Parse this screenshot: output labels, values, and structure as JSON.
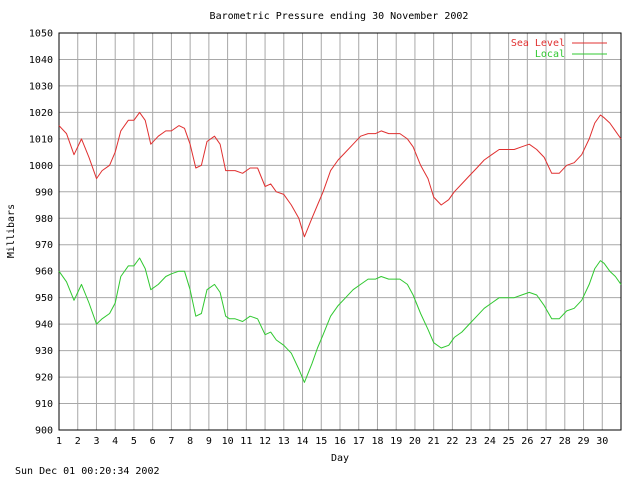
{
  "footer": {
    "timestamp": "Sun Dec 01 00:20:34 2002"
  },
  "chart_data": {
    "type": "line",
    "title": "Barometric Pressure ending 30 November 2002",
    "xlabel": "Day",
    "ylabel": "Millibars",
    "xlim": [
      1,
      31
    ],
    "ylim": [
      900,
      1050
    ],
    "x_ticks": [
      "1",
      "2",
      "3",
      "4",
      "5",
      "6",
      "7",
      "8",
      "9",
      "10",
      "11",
      "12",
      "13",
      "14",
      "15",
      "16",
      "17",
      "18",
      "19",
      "20",
      "21",
      "22",
      "23",
      "24",
      "25",
      "26",
      "27",
      "28",
      "29",
      "30"
    ],
    "y_ticks": [
      900,
      910,
      920,
      930,
      940,
      950,
      960,
      970,
      980,
      990,
      1000,
      1010,
      1020,
      1030,
      1040,
      1050
    ],
    "grid": true,
    "legend": "top-right",
    "series": [
      {
        "name": "Sea Level",
        "color": "#e03030",
        "x": [
          1.0,
          1.4,
          1.8,
          2.2,
          2.6,
          3.0,
          3.3,
          3.7,
          4.0,
          4.3,
          4.7,
          5.0,
          5.3,
          5.6,
          5.9,
          6.3,
          6.7,
          7.0,
          7.4,
          7.7,
          8.0,
          8.3,
          8.6,
          8.9,
          9.3,
          9.6,
          9.9,
          10.1,
          10.4,
          10.8,
          11.2,
          11.6,
          12.0,
          12.3,
          12.6,
          13.0,
          13.4,
          13.8,
          14.1,
          14.5,
          14.8,
          15.1,
          15.5,
          15.9,
          16.3,
          16.7,
          17.1,
          17.5,
          17.9,
          18.2,
          18.6,
          18.9,
          19.2,
          19.6,
          19.9,
          20.3,
          20.7,
          21.0,
          21.4,
          21.8,
          22.1,
          22.5,
          22.9,
          23.3,
          23.7,
          24.1,
          24.5,
          24.9,
          25.3,
          25.7,
          26.1,
          26.5,
          26.9,
          27.3,
          27.7,
          28.1,
          28.5,
          28.9,
          29.3,
          29.6,
          29.9,
          30.1,
          30.4,
          30.7,
          31.0
        ],
        "values": [
          1015,
          1012,
          1004,
          1010,
          1003,
          995,
          998,
          1000,
          1005,
          1013,
          1017,
          1017,
          1020,
          1017,
          1008,
          1011,
          1013,
          1013,
          1015,
          1014,
          1008,
          999,
          1000,
          1009,
          1011,
          1008,
          998,
          998,
          998,
          997,
          999,
          999,
          992,
          993,
          990,
          989,
          985,
          980,
          973,
          980,
          985,
          990,
          998,
          1002,
          1005,
          1008,
          1011,
          1012,
          1012,
          1013,
          1012,
          1012,
          1012,
          1010,
          1007,
          1000,
          995,
          988,
          985,
          987,
          990,
          993,
          996,
          999,
          1002,
          1004,
          1006,
          1006,
          1006,
          1007,
          1008,
          1006,
          1003,
          997,
          997,
          1000,
          1001,
          1004,
          1010,
          1016,
          1019,
          1018,
          1016,
          1013,
          1010
        ]
      },
      {
        "name": "Local",
        "color": "#30c830",
        "x": [
          1.0,
          1.4,
          1.8,
          2.2,
          2.6,
          3.0,
          3.3,
          3.7,
          4.0,
          4.3,
          4.7,
          5.0,
          5.3,
          5.6,
          5.9,
          6.3,
          6.7,
          7.0,
          7.4,
          7.7,
          8.0,
          8.3,
          8.6,
          8.9,
          9.3,
          9.6,
          9.9,
          10.1,
          10.4,
          10.8,
          11.2,
          11.6,
          12.0,
          12.3,
          12.6,
          13.0,
          13.4,
          13.8,
          14.1,
          14.5,
          14.8,
          15.1,
          15.5,
          15.9,
          16.3,
          16.7,
          17.1,
          17.5,
          17.9,
          18.2,
          18.6,
          18.9,
          19.2,
          19.6,
          19.9,
          20.3,
          20.7,
          21.0,
          21.4,
          21.8,
          22.1,
          22.5,
          22.9,
          23.3,
          23.7,
          24.1,
          24.5,
          24.9,
          25.3,
          25.7,
          26.1,
          26.5,
          26.9,
          27.3,
          27.7,
          28.1,
          28.5,
          28.9,
          29.3,
          29.6,
          29.9,
          30.1,
          30.4,
          30.7,
          31.0
        ],
        "values": [
          960,
          956,
          949,
          955,
          948,
          940,
          942,
          944,
          948,
          958,
          962,
          962,
          965,
          961,
          953,
          955,
          958,
          959,
          960,
          960,
          953,
          943,
          944,
          953,
          955,
          952,
          943,
          942,
          942,
          941,
          943,
          942,
          936,
          937,
          934,
          932,
          929,
          923,
          918,
          925,
          931,
          936,
          943,
          947,
          950,
          953,
          955,
          957,
          957,
          958,
          957,
          957,
          957,
          955,
          951,
          944,
          938,
          933,
          931,
          932,
          935,
          937,
          940,
          943,
          946,
          948,
          950,
          950,
          950,
          951,
          952,
          951,
          947,
          942,
          942,
          945,
          946,
          949,
          955,
          961,
          964,
          963,
          960,
          958,
          955
        ]
      }
    ]
  }
}
